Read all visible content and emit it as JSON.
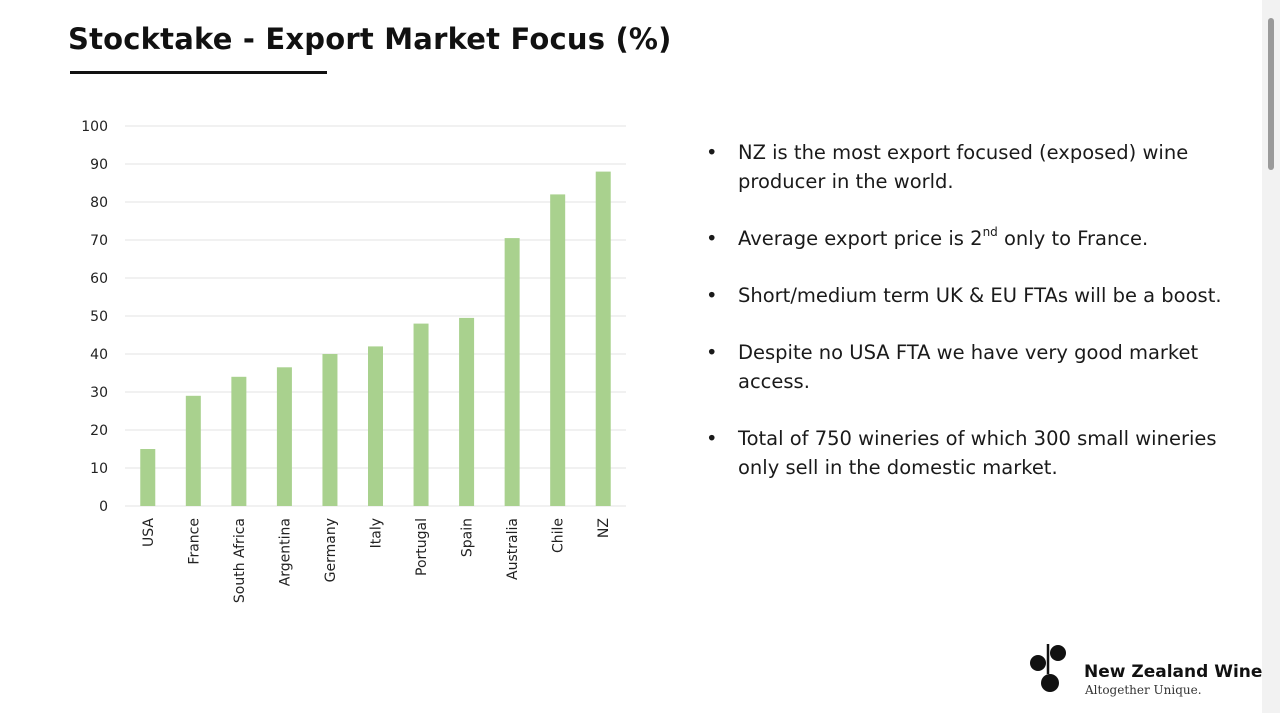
{
  "title": "Stocktake - Export Market Focus (%)",
  "chart_data": {
    "type": "bar",
    "categories": [
      "USA",
      "France",
      "South Africa",
      "Argentina",
      "Germany",
      "Italy",
      "Portugal",
      "Spain",
      "Australia",
      "Chile",
      "NZ"
    ],
    "values": [
      15,
      29,
      34,
      36.5,
      40,
      42,
      48,
      49.5,
      70.5,
      82,
      88
    ],
    "ylim": [
      0,
      100
    ],
    "yticks": [
      0,
      10,
      20,
      30,
      40,
      50,
      60,
      70,
      80,
      90,
      100
    ],
    "grid": true,
    "bar_color": "#a9d18e",
    "xlabel": "",
    "ylabel": ""
  },
  "bullets": [
    {
      "text": "NZ is the most export focused (exposed) wine producer in the world."
    },
    {
      "before": "Average export price is 2",
      "sup": "nd",
      "after": " only to France."
    },
    {
      "text": "Short/medium term UK & EU FTAs will be a boost."
    },
    {
      "text": "Despite no USA FTA we have very good market access."
    },
    {
      "text": "Total of 750 wineries of which 300 small wineries only sell in the domestic market."
    }
  ],
  "bullet_glyph": "•",
  "logo": {
    "name": "New Zealand Wine",
    "tagline": "Altogether Unique.",
    "icon": "grape-cluster-icon"
  }
}
